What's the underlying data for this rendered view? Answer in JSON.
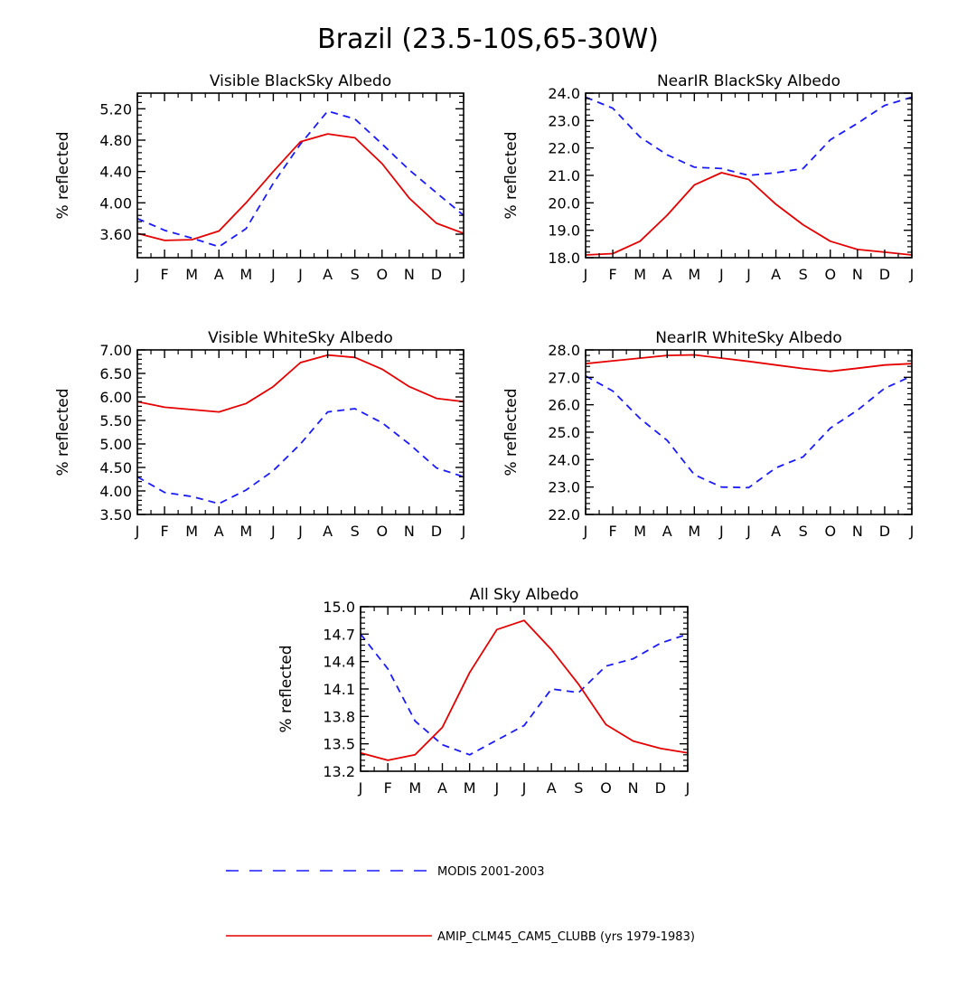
{
  "title": "Brazil (23.5-10S,65-30W)",
  "legend": {
    "entries": [
      {
        "label": "MODIS 2001-2003",
        "color": "#1a1aff",
        "dash": true
      },
      {
        "label": "AMIP_CLM45_CAM5_CLUBB (yrs 1979-1983)",
        "color": "#e60000",
        "dash": false
      }
    ]
  },
  "chart_data": [
    {
      "type": "line",
      "title": "Visible BlackSky Albedo",
      "ylabel": "% reflected",
      "categories": [
        "J",
        "F",
        "M",
        "A",
        "M",
        "J",
        "J",
        "A",
        "S",
        "O",
        "N",
        "D",
        "J"
      ],
      "ylim": [
        3.3,
        5.4
      ],
      "yticks": [
        "3.60",
        "4.00",
        "4.40",
        "4.80",
        "5.20"
      ],
      "series": [
        {
          "name": "MODIS 2001-2003",
          "color": "#1a1aff",
          "dash": true,
          "values": [
            3.8,
            3.65,
            3.55,
            3.44,
            3.67,
            4.25,
            4.75,
            5.17,
            5.07,
            4.75,
            4.42,
            4.13,
            3.84
          ]
        },
        {
          "name": "AMIP_CLM45_CAM5_CLUBB (yrs 1979-1983)",
          "color": "#e60000",
          "dash": false,
          "values": [
            3.61,
            3.52,
            3.53,
            3.64,
            4.0,
            4.4,
            4.78,
            4.88,
            4.83,
            4.5,
            4.06,
            3.74,
            3.61
          ]
        }
      ]
    },
    {
      "type": "line",
      "title": "NearIR BlackSky Albedo",
      "ylabel": "% reflected",
      "categories": [
        "J",
        "F",
        "M",
        "A",
        "M",
        "J",
        "J",
        "A",
        "S",
        "O",
        "N",
        "D",
        "J"
      ],
      "ylim": [
        18.0,
        24.0
      ],
      "yticks": [
        "18.0",
        "19.0",
        "20.0",
        "21.0",
        "22.0",
        "23.0",
        "24.0"
      ],
      "series": [
        {
          "name": "MODIS 2001-2003",
          "color": "#1a1aff",
          "dash": true,
          "values": [
            23.85,
            23.45,
            22.4,
            21.75,
            21.3,
            21.25,
            21.0,
            21.1,
            21.25,
            22.3,
            22.9,
            23.55,
            23.85
          ]
        },
        {
          "name": "AMIP_CLM45_CAM5_CLUBB (yrs 1979-1983)",
          "color": "#e60000",
          "dash": false,
          "values": [
            18.1,
            18.15,
            18.6,
            19.55,
            20.65,
            21.1,
            20.85,
            19.95,
            19.2,
            18.6,
            18.3,
            18.2,
            18.1
          ]
        }
      ]
    },
    {
      "type": "line",
      "title": "Visible WhiteSky Albedo",
      "ylabel": "% reflected",
      "categories": [
        "J",
        "F",
        "M",
        "A",
        "M",
        "J",
        "J",
        "A",
        "S",
        "O",
        "N",
        "D",
        "J"
      ],
      "ylim": [
        3.5,
        7.0
      ],
      "yticks": [
        "3.50",
        "4.00",
        "4.50",
        "5.00",
        "5.50",
        "6.00",
        "6.50",
        "7.00"
      ],
      "series": [
        {
          "name": "MODIS 2001-2003",
          "color": "#1a1aff",
          "dash": true,
          "values": [
            4.3,
            3.97,
            3.88,
            3.73,
            4.02,
            4.43,
            5.0,
            5.68,
            5.75,
            5.45,
            5.0,
            4.49,
            4.3
          ]
        },
        {
          "name": "AMIP_CLM45_CAM5_CLUBB (yrs 1979-1983)",
          "color": "#e60000",
          "dash": false,
          "values": [
            5.9,
            5.78,
            5.73,
            5.68,
            5.86,
            6.22,
            6.73,
            6.89,
            6.84,
            6.59,
            6.22,
            5.97,
            5.9
          ]
        }
      ]
    },
    {
      "type": "line",
      "title": "NearIR WhiteSky Albedo",
      "ylabel": "% reflected",
      "categories": [
        "J",
        "F",
        "M",
        "A",
        "M",
        "J",
        "J",
        "A",
        "S",
        "O",
        "N",
        "D",
        "J"
      ],
      "ylim": [
        22.0,
        28.0
      ],
      "yticks": [
        "22.0",
        "23.0",
        "24.0",
        "25.0",
        "26.0",
        "27.0",
        "28.0"
      ],
      "series": [
        {
          "name": "MODIS 2001-2003",
          "color": "#1a1aff",
          "dash": true,
          "values": [
            27.05,
            26.5,
            25.5,
            24.7,
            23.45,
            23.0,
            22.98,
            23.7,
            24.1,
            25.15,
            25.8,
            26.6,
            27.05
          ]
        },
        {
          "name": "AMIP_CLM45_CAM5_CLUBB (yrs 1979-1983)",
          "color": "#e60000",
          "dash": false,
          "values": [
            27.5,
            27.6,
            27.7,
            27.8,
            27.82,
            27.7,
            27.58,
            27.45,
            27.32,
            27.22,
            27.33,
            27.45,
            27.5
          ]
        }
      ]
    },
    {
      "type": "line",
      "title": "All Sky Albedo",
      "ylabel": "% reflected",
      "categories": [
        "J",
        "F",
        "M",
        "A",
        "M",
        "J",
        "J",
        "A",
        "S",
        "O",
        "N",
        "D",
        "J"
      ],
      "ylim": [
        13.2,
        15.0
      ],
      "yticks": [
        "13.2",
        "13.5",
        "13.8",
        "14.1",
        "14.4",
        "14.7",
        "15.0"
      ],
      "series": [
        {
          "name": "MODIS 2001-2003",
          "color": "#1a1aff",
          "dash": true,
          "values": [
            14.7,
            14.32,
            13.75,
            13.49,
            13.38,
            13.54,
            13.7,
            14.1,
            14.06,
            14.35,
            14.43,
            14.6,
            14.7
          ]
        },
        {
          "name": "AMIP_CLM45_CAM5_CLUBB (yrs 1979-1983)",
          "color": "#e60000",
          "dash": false,
          "values": [
            13.4,
            13.32,
            13.38,
            13.68,
            14.28,
            14.75,
            14.85,
            14.53,
            14.15,
            13.71,
            13.53,
            13.45,
            13.4
          ]
        }
      ]
    }
  ]
}
